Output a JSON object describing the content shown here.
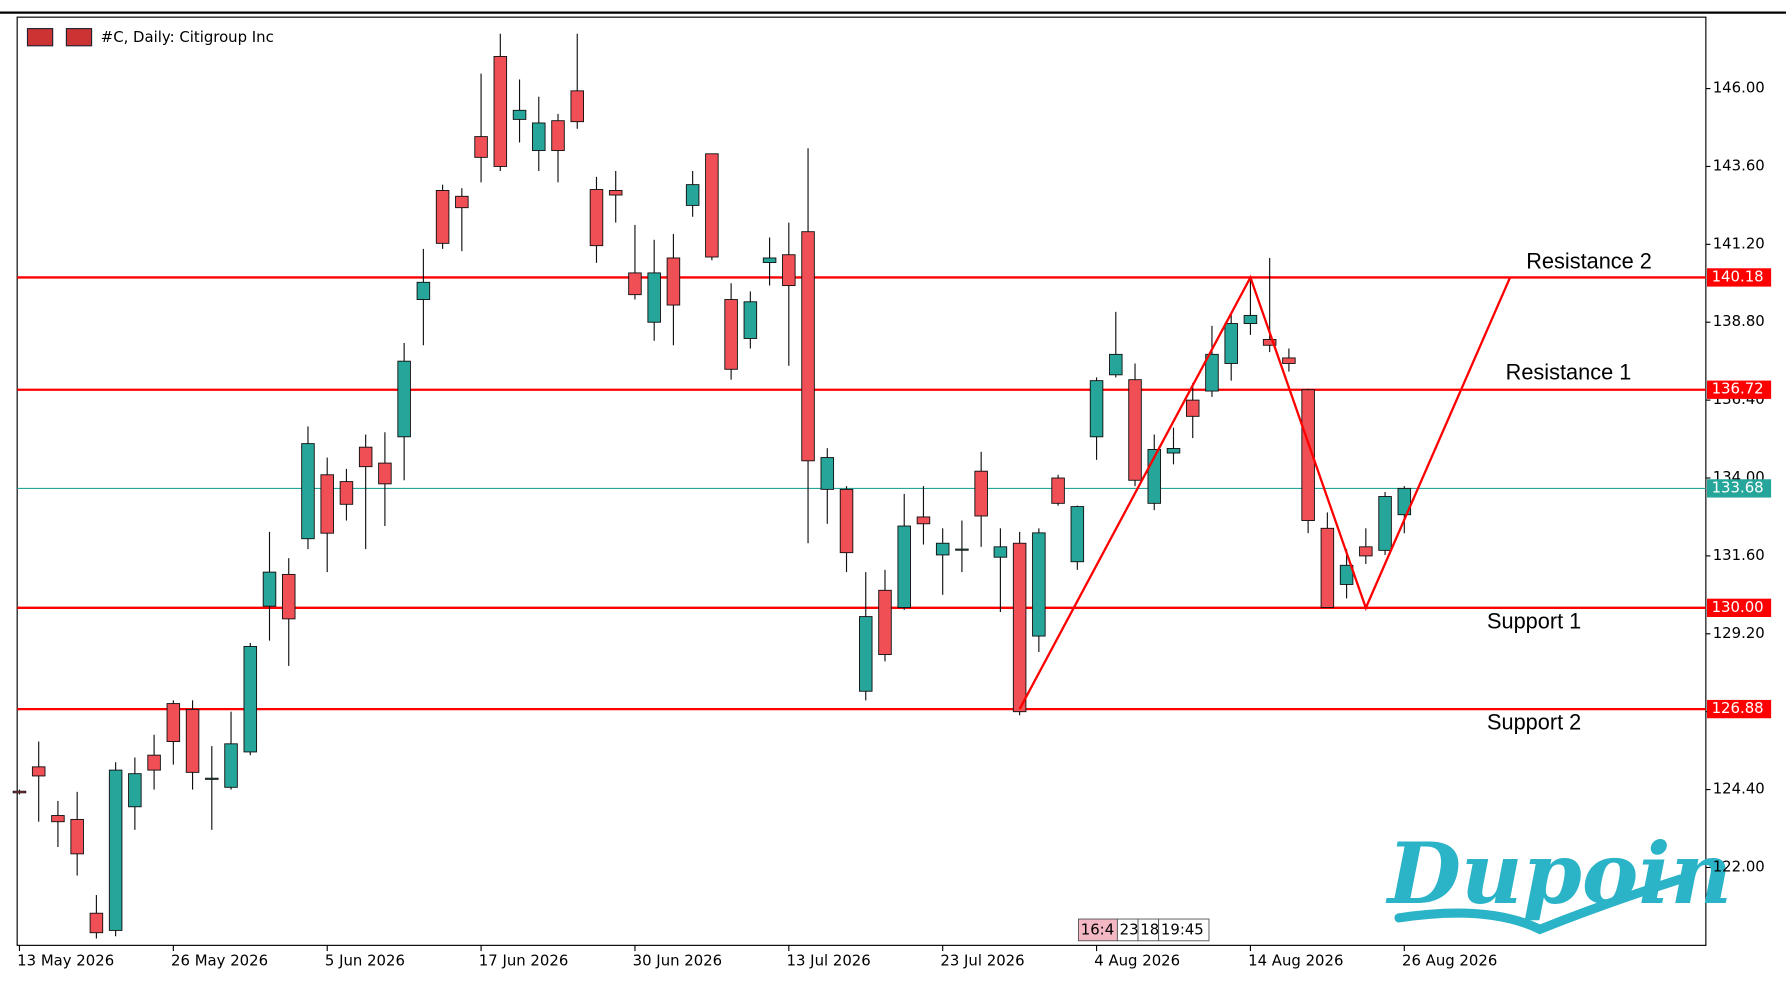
{
  "chart_data": {
    "type": "candlestick",
    "title": "#C, Daily:  Citigroup Inc",
    "categories": [
      "13 May 2026",
      null,
      null,
      null,
      null,
      null,
      null,
      null,
      "26 May 2026",
      null,
      null,
      null,
      null,
      null,
      null,
      null,
      "5 Jun 2026",
      null,
      null,
      null,
      null,
      null,
      null,
      null,
      "17 Jun 2026",
      null,
      null,
      null,
      null,
      null,
      null,
      null,
      "30 Jun 2026",
      null,
      null,
      null,
      null,
      null,
      null,
      null,
      "13 Jul 2026",
      null,
      null,
      null,
      null,
      null,
      null,
      null,
      "23 Jul 2026",
      null,
      null,
      null,
      null,
      null,
      null,
      null,
      "4 Aug 2026",
      null,
      null,
      null,
      null,
      null,
      null,
      null,
      "14 Aug 2026",
      null,
      null,
      null,
      null,
      null,
      null,
      null,
      "26 Aug 2026"
    ],
    "open": [
      124.35,
      125.1,
      123.6,
      123.48,
      120.59,
      120.06,
      123.87,
      125.46,
      127.05,
      126.87,
      124.75,
      124.47,
      125.56,
      130.05,
      131.03,
      132.13,
      134.1,
      133.89,
      134.95,
      134.46,
      135.27,
      139.5,
      142.86,
      142.68,
      144.52,
      146.99,
      145.05,
      144.09,
      145.01,
      145.93,
      142.89,
      142.86,
      140.32,
      138.8,
      140.78,
      142.4,
      143.99,
      139.5,
      138.3,
      140.64,
      140.88,
      141.59,
      133.65,
      133.65,
      127.43,
      130.54,
      130.01,
      132.8,
      131.63,
      131.81,
      134.21,
      131.56,
      131.99,
      129.13,
      134.0,
      131.42,
      135.27,
      137.18,
      137.03,
      133.22,
      134.77,
      136.4,
      136.68,
      137.53,
      138.76,
      138.27,
      137.7,
      136.72,
      132.45,
      130.72,
      131.88,
      131.77,
      132.87
    ],
    "high": [
      124.4,
      125.88,
      124.05,
      124.33,
      121.15,
      125.24,
      125.39,
      126.09,
      127.15,
      127.15,
      125.74,
      126.8,
      128.92,
      132.34,
      131.53,
      135.59,
      134.63,
      134.28,
      135.34,
      135.41,
      138.16,
      141.06,
      143.04,
      142.93,
      146.46,
      147.69,
      146.28,
      145.75,
      145.22,
      147.69,
      143.28,
      143.46,
      141.8,
      141.34,
      141.52,
      143.46,
      143.99,
      140.0,
      139.75,
      141.41,
      141.87,
      144.16,
      134.92,
      133.75,
      131.1,
      131.17,
      133.51,
      133.75,
      132.45,
      132.69,
      134.81,
      132.45,
      132.34,
      132.45,
      134.1,
      133.15,
      137.1,
      139.12,
      137.53,
      135.34,
      135.55,
      136.93,
      138.69,
      139.05,
      140.21,
      140.78,
      137.99,
      136.75,
      132.94,
      131.81,
      132.45,
      133.57,
      133.75
    ],
    "low": [
      124.25,
      123.41,
      122.63,
      121.75,
      119.81,
      119.88,
      123.16,
      124.4,
      125.17,
      124.4,
      123.16,
      124.4,
      125.46,
      128.99,
      128.21,
      131.81,
      131.1,
      132.69,
      131.81,
      132.52,
      133.93,
      138.09,
      141.06,
      140.99,
      143.11,
      143.46,
      144.34,
      143.46,
      143.11,
      144.76,
      140.63,
      141.87,
      139.5,
      138.23,
      138.09,
      142.05,
      140.71,
      137.03,
      137.99,
      139.93,
      137.46,
      131.99,
      132.59,
      131.1,
      127.15,
      128.35,
      129.94,
      131.95,
      130.4,
      131.1,
      131.88,
      129.87,
      126.69,
      128.64,
      133.15,
      131.17,
      134.56,
      137.1,
      133.75,
      133.01,
      134.42,
      135.23,
      136.5,
      137.0,
      138.41,
      137.88,
      137.28,
      132.3,
      130.01,
      130.29,
      131.35,
      131.63,
      132.3
    ],
    "close": [
      124.3,
      124.82,
      123.41,
      122.42,
      119.99,
      125.0,
      124.89,
      125.0,
      125.88,
      124.93,
      124.75,
      125.81,
      128.81,
      131.1,
      129.66,
      135.06,
      132.3,
      133.19,
      134.35,
      133.82,
      137.6,
      140.03,
      141.23,
      142.33,
      143.88,
      143.6,
      145.33,
      144.94,
      144.09,
      144.98,
      141.16,
      142.72,
      139.65,
      140.32,
      139.33,
      143.04,
      140.81,
      137.35,
      139.43,
      140.78,
      139.93,
      134.53,
      134.63,
      131.7,
      129.73,
      128.56,
      132.52,
      132.59,
      131.99,
      131.81,
      132.83,
      131.88,
      126.8,
      132.31,
      133.22,
      133.12,
      137.0,
      137.81,
      133.93,
      134.88,
      134.91,
      135.9,
      137.81,
      138.76,
      139.01,
      138.09,
      137.53,
      132.69,
      130.01,
      131.31,
      131.6,
      133.43,
      133.68
    ],
    "up_color": "#26a69a",
    "down_color": "#ef4f55",
    "ylim": [
      119.6,
      148.2
    ],
    "yticks": [
      {
        "value": 122,
        "label": "122.00"
      },
      {
        "value": 124.4,
        "label": "124.40"
      },
      {
        "value": 126.8,
        "label": "126.80"
      },
      {
        "value": 129.2,
        "label": "129.20"
      },
      {
        "value": 131.6,
        "label": "131.60"
      },
      {
        "value": 134,
        "label": "134.00"
      },
      {
        "value": 136.4,
        "label": "136.40"
      },
      {
        "value": 138.8,
        "label": "138.80"
      },
      {
        "value": 141.2,
        "label": "141.20"
      },
      {
        "value": 143.6,
        "label": "143.60"
      },
      {
        "value": 146,
        "label": "146.00"
      }
    ],
    "levels": {
      "names": [
        "Resistance 2",
        "Resistance 1",
        "Support 1",
        "Support 2"
      ],
      "values": [
        140.18,
        136.72,
        130.0,
        126.88
      ],
      "value_labels": [
        "140.18",
        "136.72",
        "130.00",
        "126.88"
      ],
      "color": "#ff0000"
    },
    "current_price": {
      "value": 133.68,
      "label": "133.68",
      "color": "#26a69a"
    },
    "pattern": {
      "x": [
        52,
        64,
        70,
        77.5
      ],
      "values": [
        126.88,
        140.18,
        130.0,
        140.18
      ],
      "color": "#ff0000"
    },
    "time_tags": [
      "16:4",
      "23",
      "18",
      "19:45"
    ]
  },
  "logo": "Dupoin"
}
